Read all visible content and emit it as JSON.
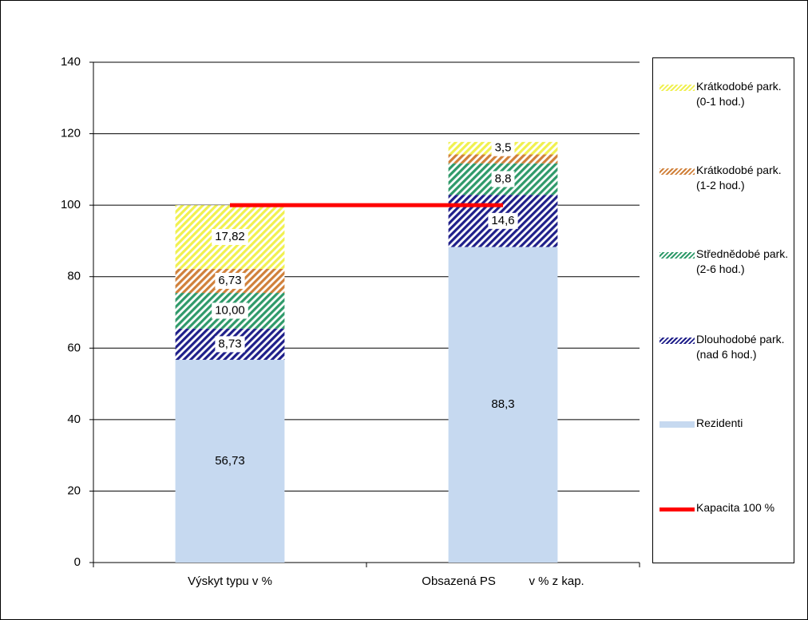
{
  "chart_data": {
    "type": "stacked_bar",
    "categories": [
      "Výskyt typu v %",
      "Obsazená PS          v % z kap."
    ],
    "series": [
      {
        "name": "Rezidenti",
        "color": "#c6d9f0",
        "pattern": "solid",
        "values": [
          56.73,
          88.3
        ],
        "value_labels": [
          "56,73",
          "88,3"
        ]
      },
      {
        "name": "Dlouhodobé park. (nad 6 hod.)",
        "color": "#1f1f8a",
        "pattern": "hatch",
        "values": [
          8.73,
          14.6
        ],
        "value_labels": [
          "8,73",
          "14,6"
        ]
      },
      {
        "name": "Střednědobé park. (2-6 hod.)",
        "color": "#2f9a6a",
        "pattern": "hatch",
        "values": [
          10.0,
          8.8
        ],
        "value_labels": [
          "10,00",
          "8,8"
        ]
      },
      {
        "name": "Krátkodobé park. (1-2 hod.)",
        "color": "#d0803a",
        "pattern": "hatch",
        "values": [
          6.73,
          2.5
        ],
        "value_labels": [
          "6,73",
          null
        ]
      },
      {
        "name": "Krátkodobé park. (0-1 hod.)",
        "color": "#f0f050",
        "pattern": "hatch",
        "values": [
          17.82,
          3.5
        ],
        "value_labels": [
          "17,82",
          "3,5"
        ]
      },
      {
        "name": "Kapacita 100 %",
        "color": "#ff0000",
        "type": "line",
        "values": [
          100,
          100
        ]
      }
    ],
    "ylim": [
      0,
      140
    ],
    "yticks": [
      0,
      20,
      40,
      60,
      80,
      100,
      120,
      140
    ],
    "grid": true,
    "legend": "right"
  }
}
